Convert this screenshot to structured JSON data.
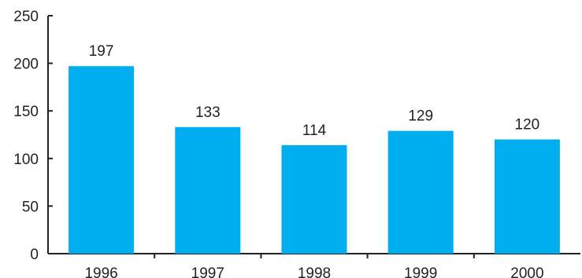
{
  "chart_data": {
    "type": "bar",
    "categories": [
      "1996",
      "1997",
      "1998",
      "1999",
      "2000"
    ],
    "values": [
      197,
      133,
      114,
      129,
      120
    ],
    "data_labels": [
      "197",
      "133",
      "114",
      "129",
      "120"
    ],
    "y_ticks": [
      "0",
      "50",
      "100",
      "150",
      "200",
      "250"
    ],
    "ylim": [
      0,
      250
    ],
    "title": "",
    "xlabel": "",
    "ylabel": "",
    "grid": false,
    "colors": {
      "bar": "#00AEEF",
      "axis": "#222222",
      "text": "#222222"
    }
  }
}
